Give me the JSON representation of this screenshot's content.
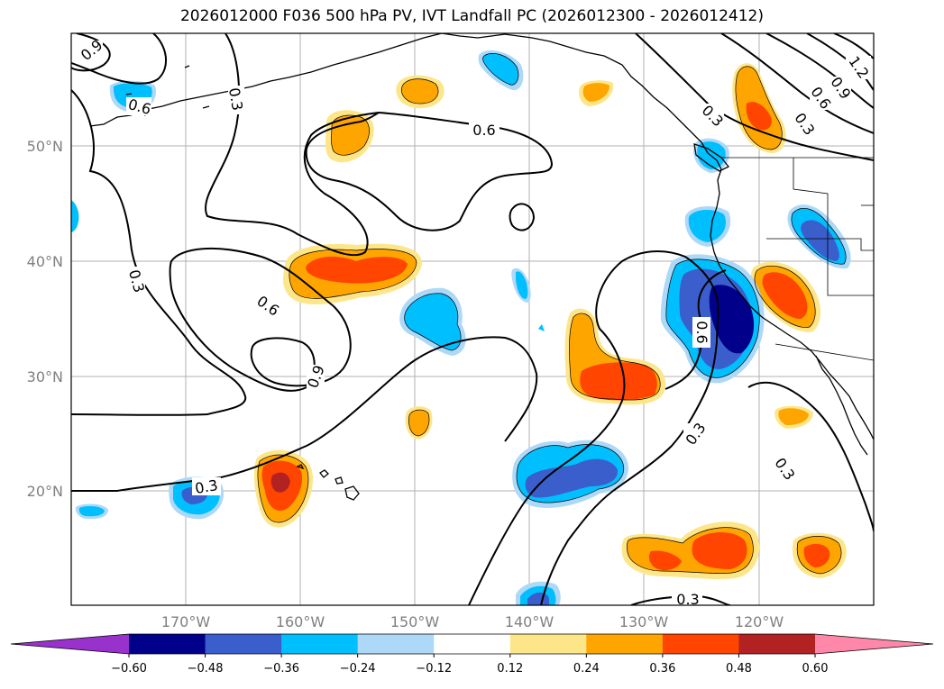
{
  "title": "2026012000 F036 500 hPa PV, IVT Landfall PC (2026012300 - 2026012412)",
  "lat_labels": [
    "50°N",
    "40°N",
    "30°N",
    "20°N"
  ],
  "lon_labels": [
    "170°W",
    "160°W",
    "150°W",
    "140°W",
    "130°W",
    "120°W"
  ],
  "contour_labels": [
    "0.9",
    "0.6",
    "0.3",
    "0.6",
    "0.3",
    "0.6",
    "0.9",
    "0.3",
    "0.3",
    "0.3",
    "0.3",
    "0.6",
    "0.3",
    "0.6",
    "0.9",
    "1.2",
    "0.6",
    "0.3"
  ],
  "colorbar": {
    "ticks": [
      "−0.60",
      "−0.48",
      "−0.36",
      "−0.24",
      "−0.12",
      "0.12",
      "0.24",
      "0.36",
      "0.48",
      "0.60"
    ],
    "colors": [
      "#9932cc",
      "#00008b",
      "#3a5fcd",
      "#00bfff",
      "#add8f7",
      "#ffffff",
      "#fde68a",
      "#ffa500",
      "#ff4500",
      "#b22222",
      "#ff88aa"
    ]
  },
  "fill_colors": {
    "neg_light": "#add8f7",
    "neg_mid": "#00bfff",
    "neg_dark": "#3a5fcd",
    "neg_darkest": "#00008b",
    "pos_light": "#fde68a",
    "pos_mid": "#ffa500",
    "pos_dark": "#ff4500",
    "pos_darkest": "#b22222"
  }
}
